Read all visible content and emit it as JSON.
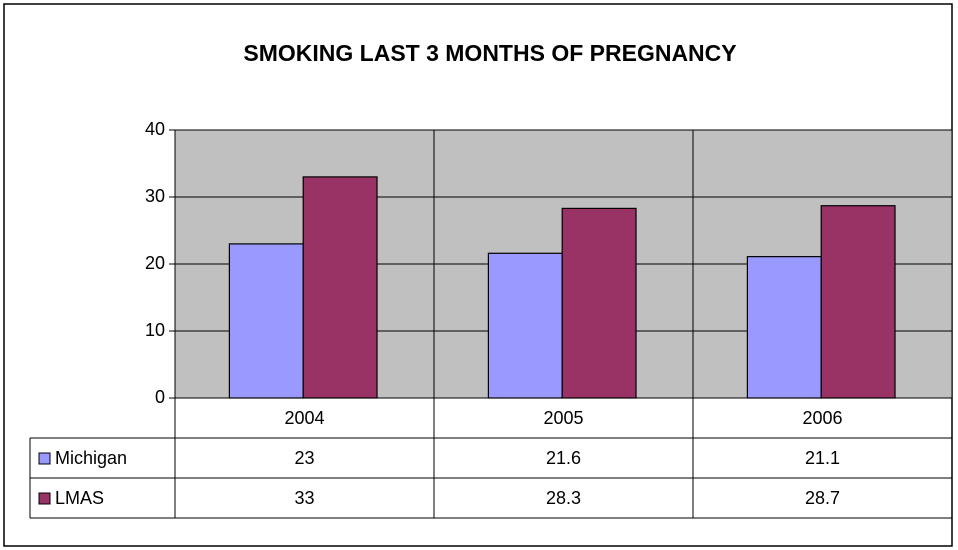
{
  "chart_data": {
    "type": "bar",
    "title": "SMOKING LAST 3 MONTHS OF PREGNANCY",
    "categories": [
      "2004",
      "2005",
      "2006"
    ],
    "series": [
      {
        "name": "Michigan",
        "color": "#9999ff",
        "values": [
          23,
          21.6,
          21.1
        ]
      },
      {
        "name": "LMAS",
        "color": "#993366",
        "values": [
          33,
          28.3,
          28.7
        ]
      }
    ],
    "ylim": [
      0,
      40
    ],
    "yticks": [
      0,
      10,
      20,
      30,
      40
    ],
    "grid": true,
    "plot_background": "#c0c0c0"
  }
}
